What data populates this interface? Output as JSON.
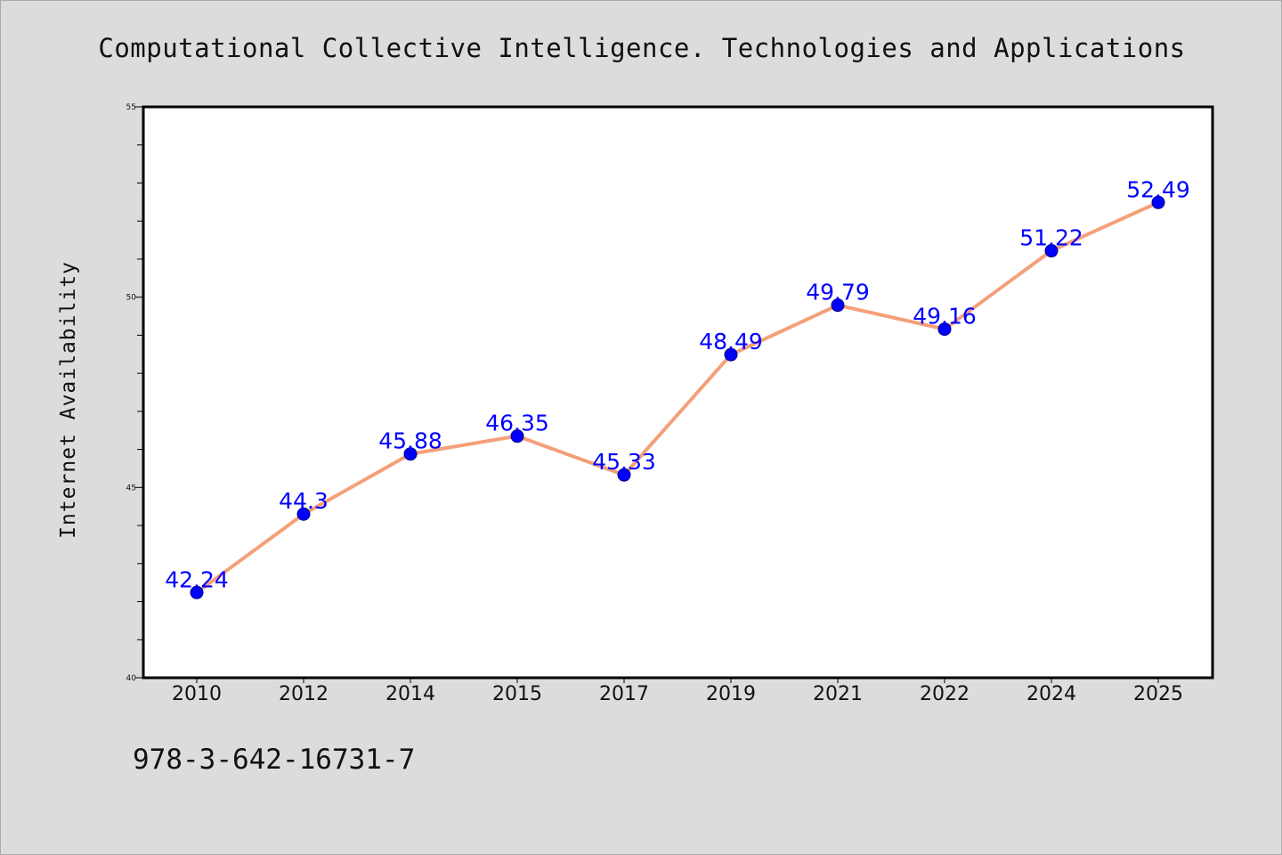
{
  "page": {
    "isbn": "978-3-642-16731-7"
  },
  "chart_data": {
    "type": "line",
    "title": "Computational Collective Intelligence. Technologies and Applications",
    "xlabel": "",
    "ylabel": "Internet Availability",
    "categories": [
      "2010",
      "2012",
      "2014",
      "2015",
      "2017",
      "2019",
      "2021",
      "2022",
      "2024",
      "2025"
    ],
    "values": [
      42.24,
      44.3,
      45.88,
      46.35,
      45.33,
      48.49,
      49.79,
      49.16,
      51.22,
      52.49
    ],
    "data_labels": [
      "42.24",
      "44.3",
      "45.88",
      "46.35",
      "45.33",
      "48.49",
      "49.79",
      "49.16",
      "51.22",
      "52.49"
    ],
    "ylim": [
      40,
      55
    ],
    "yticks": [
      40,
      45,
      50,
      55
    ],
    "grid": false,
    "legend": "none",
    "line_color": "#f4a07a",
    "marker_color": "#0000ff",
    "label_color": "#0000ff",
    "background_color": "#dcdcdc",
    "plot_background": "#ffffff"
  }
}
